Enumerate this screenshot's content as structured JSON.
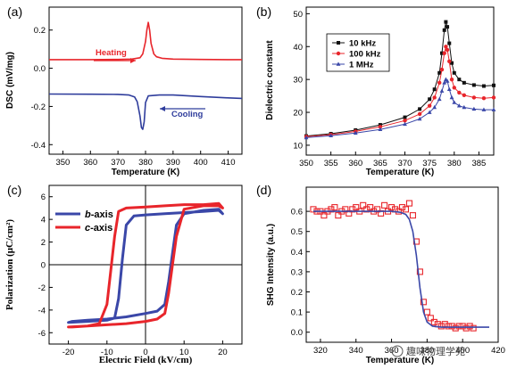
{
  "chart_data": [
    {
      "type": "line",
      "panel_label": "(a)",
      "xlabel": "Temperature (K)",
      "ylabel": "DSC (mV/mg)",
      "xlim": [
        345,
        415
      ],
      "ylim": [
        -0.45,
        0.32
      ],
      "xticks": [
        350,
        360,
        370,
        380,
        390,
        400,
        410
      ],
      "yticks": [
        -0.4,
        -0.2,
        0.0,
        0.2
      ],
      "ytick_labels": [
        "-0.4",
        "-0.2",
        "0.0",
        "0.2"
      ],
      "series": [
        {
          "name": "Heating",
          "color": "#e8252b",
          "x": [
            345,
            360,
            370,
            375,
            378,
            379,
            380,
            380.5,
            381,
            381.5,
            382,
            383,
            384,
            386,
            390,
            400,
            410,
            415
          ],
          "y": [
            0.045,
            0.045,
            0.046,
            0.048,
            0.055,
            0.075,
            0.14,
            0.2,
            0.24,
            0.2,
            0.13,
            0.075,
            0.06,
            0.052,
            0.048,
            0.046,
            0.045,
            0.045
          ]
        },
        {
          "name": "Cooling",
          "color": "#2f3d9c",
          "x": [
            345,
            360,
            370,
            374,
            376,
            377,
            378,
            378.5,
            379,
            379.5,
            380,
            381,
            385,
            390,
            400,
            410,
            415
          ],
          "y": [
            -0.135,
            -0.136,
            -0.137,
            -0.14,
            -0.15,
            -0.175,
            -0.25,
            -0.31,
            -0.32,
            -0.28,
            -0.18,
            -0.145,
            -0.14,
            -0.14,
            -0.148,
            -0.155,
            -0.158
          ]
        }
      ],
      "annotations": [
        {
          "text": "Heating",
          "color": "#e8252b",
          "arrow": "right"
        },
        {
          "text": "Cooling",
          "color": "#2f3d9c",
          "arrow": "left"
        }
      ]
    },
    {
      "type": "scatter",
      "panel_label": "(b)",
      "xlabel": "Temperature (K)",
      "ylabel": "Dielectric constant",
      "xlim": [
        350,
        388
      ],
      "ylim": [
        7,
        52
      ],
      "xticks": [
        350,
        355,
        360,
        365,
        370,
        375,
        380,
        385
      ],
      "yticks": [
        10,
        20,
        30,
        40,
        50
      ],
      "legend": "top-left",
      "series": [
        {
          "name": "10 kHz",
          "color": "#111111",
          "marker": "square",
          "x": [
            350,
            355,
            360,
            365,
            370,
            373,
            375,
            376,
            377,
            377.5,
            378,
            378.3,
            378.6,
            379,
            379.5,
            380,
            381,
            382,
            384,
            386,
            388
          ],
          "y": [
            12.8,
            13.5,
            14.6,
            16.2,
            18.5,
            21,
            24,
            27,
            32,
            38,
            45,
            47.5,
            46,
            41,
            35,
            32,
            30,
            29,
            28.3,
            28,
            28.2
          ]
        },
        {
          "name": "100 kHz",
          "color": "#e8252b",
          "marker": "circle",
          "x": [
            350,
            355,
            360,
            365,
            370,
            373,
            375,
            376,
            377,
            377.5,
            378,
            378.3,
            378.6,
            379,
            379.5,
            380,
            381,
            382,
            384,
            386,
            388
          ],
          "y": [
            12.6,
            13.2,
            14.2,
            15.6,
            17.5,
            19.5,
            22,
            24.5,
            29,
            33,
            38,
            40,
            39,
            35.5,
            30,
            27.5,
            26,
            25.2,
            24.5,
            24.3,
            24.5
          ]
        },
        {
          "name": "1 MHz",
          "color": "#3a47a8",
          "marker": "triangle",
          "x": [
            350,
            355,
            360,
            365,
            370,
            373,
            375,
            376,
            377,
            377.5,
            378,
            378.3,
            378.6,
            379,
            379.5,
            380,
            381,
            382,
            384,
            386,
            388
          ],
          "y": [
            12.3,
            12.9,
            13.7,
            14.8,
            16.4,
            18,
            20,
            21.5,
            24,
            26.5,
            29,
            30,
            29.5,
            27,
            24.5,
            23,
            22,
            21.5,
            21,
            20.8,
            20.8
          ]
        }
      ]
    },
    {
      "type": "line",
      "panel_label": "(c)",
      "xlabel": "Electric Field (kV/cm)",
      "ylabel": "Polarization (μC/cm²)",
      "xlim": [
        -25,
        25
      ],
      "ylim": [
        -7,
        7
      ],
      "xticks": [
        -20,
        -10,
        0,
        10,
        20
      ],
      "yticks": [
        -6,
        -4,
        -2,
        0,
        2,
        4,
        6
      ],
      "legend": "top-left",
      "series": [
        {
          "name": "b-axis",
          "color": "#3a47a8",
          "x": [
            -20,
            -15,
            -10,
            -8,
            -7,
            -6,
            -5,
            -3,
            0,
            5,
            10,
            15,
            19,
            20,
            19,
            15,
            10,
            8,
            7,
            6,
            5,
            3,
            0,
            -5,
            -10,
            -15,
            -19,
            -20
          ],
          "y": [
            -5.1,
            -5.0,
            -4.9,
            -4.7,
            -3.0,
            0.5,
            3.5,
            4.3,
            4.4,
            4.5,
            4.6,
            4.7,
            4.8,
            4.5,
            4.9,
            4.8,
            4.5,
            3.5,
            1.0,
            -1.5,
            -3.5,
            -4.1,
            -4.3,
            -4.6,
            -4.8,
            -4.9,
            -5.0,
            -5.1
          ]
        },
        {
          "name": "c-axis",
          "color": "#e8252b",
          "x": [
            -20,
            -15,
            -12,
            -10,
            -9,
            -8,
            -7,
            -5,
            0,
            5,
            10,
            15,
            19,
            20,
            19,
            15,
            10,
            8,
            7,
            6,
            5,
            3,
            0,
            -5,
            -10,
            -15,
            -19,
            -20
          ],
          "y": [
            -5.5,
            -5.4,
            -5.2,
            -3.5,
            -0.5,
            2.5,
            4.7,
            5.0,
            5.1,
            5.2,
            5.3,
            5.3,
            5.4,
            5.0,
            5.2,
            5.2,
            4.9,
            2.5,
            0.0,
            -2.5,
            -4.3,
            -4.8,
            -5.0,
            -5.2,
            -5.3,
            -5.4,
            -5.5,
            -5.5
          ]
        }
      ]
    },
    {
      "type": "scatter",
      "panel_label": "(d)",
      "xlabel": "Temperature (K)",
      "ylabel": "SHG Intensity (a.u.)",
      "xlim": [
        312,
        420
      ],
      "ylim": [
        -0.05,
        0.72
      ],
      "xticks": [
        320,
        340,
        360,
        380,
        400,
        420
      ],
      "yticks": [
        0.0,
        0.1,
        0.2,
        0.3,
        0.4,
        0.5,
        0.6
      ],
      "ytick_labels": [
        "0.0",
        "0.1",
        "0.2",
        "0.3",
        "0.4",
        "0.5",
        "0.6"
      ],
      "series": [
        {
          "name": "",
          "color": "#e8252b",
          "marker": "open-square",
          "x": [
            316,
            318,
            320,
            322,
            324,
            326,
            328,
            330,
            332,
            334,
            336,
            338,
            340,
            342,
            344,
            346,
            348,
            350,
            352,
            354,
            356,
            358,
            360,
            362,
            364,
            366,
            368,
            370,
            372,
            374,
            376,
            378,
            380,
            382,
            384,
            386,
            388,
            390,
            392,
            394,
            396,
            398,
            400,
            402,
            404,
            406
          ],
          "y": [
            0.61,
            0.6,
            0.6,
            0.58,
            0.6,
            0.61,
            0.62,
            0.58,
            0.6,
            0.61,
            0.59,
            0.61,
            0.62,
            0.6,
            0.63,
            0.61,
            0.62,
            0.6,
            0.61,
            0.59,
            0.63,
            0.6,
            0.62,
            0.61,
            0.6,
            0.62,
            0.61,
            0.64,
            0.58,
            0.45,
            0.3,
            0.15,
            0.1,
            0.07,
            0.05,
            0.04,
            0.03,
            0.04,
            0.03,
            0.03,
            0.02,
            0.03,
            0.03,
            0.02,
            0.03,
            0.02
          ]
        },
        {
          "name": "",
          "color": "#3a47a8",
          "marker": "line",
          "x": [
            316,
            330,
            350,
            360,
            365,
            368,
            370,
            372,
            374,
            376,
            378,
            380,
            383,
            388,
            395,
            405,
            415
          ],
          "y": [
            0.6,
            0.6,
            0.6,
            0.6,
            0.595,
            0.585,
            0.56,
            0.5,
            0.38,
            0.22,
            0.1,
            0.05,
            0.03,
            0.025,
            0.025,
            0.025,
            0.025
          ]
        }
      ]
    }
  ],
  "watermark": "趣味物理学苑"
}
